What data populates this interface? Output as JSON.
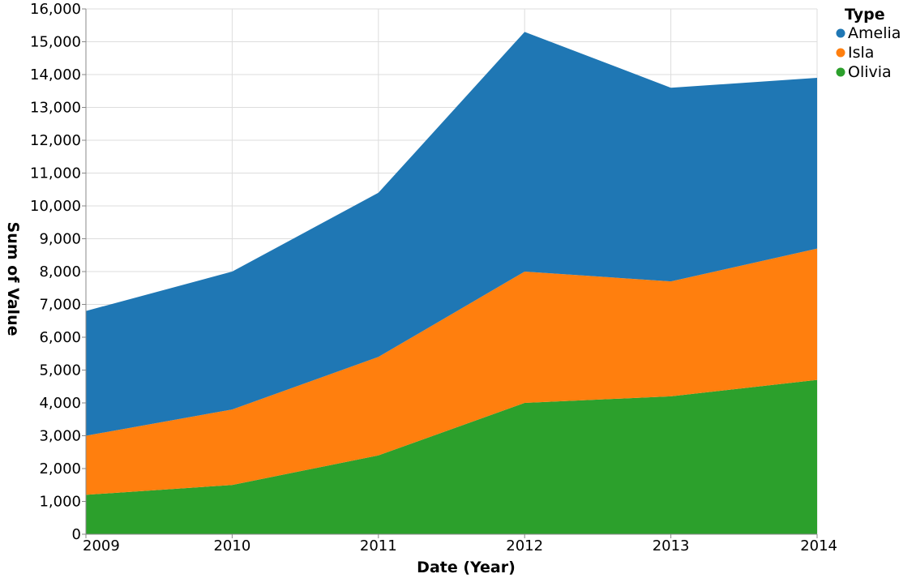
{
  "chart_data": {
    "type": "area",
    "stacked": true,
    "title": "",
    "xlabel": "Date (Year)",
    "ylabel": "Sum of Value",
    "x": [
      "2009",
      "2010",
      "2011",
      "2012",
      "2013",
      "2014"
    ],
    "ylim": [
      0,
      16000
    ],
    "yticks": [
      0,
      1000,
      2000,
      3000,
      4000,
      5000,
      6000,
      7000,
      8000,
      9000,
      10000,
      11000,
      12000,
      13000,
      14000,
      15000,
      16000
    ],
    "ytick_labels": [
      "0",
      "1,000",
      "2,000",
      "3,000",
      "4,000",
      "5,000",
      "6,000",
      "7,000",
      "8,000",
      "9,000",
      "10,000",
      "11,000",
      "12,000",
      "13,000",
      "14,000",
      "15,000",
      "16,000"
    ],
    "grid": true,
    "legend": {
      "title": "Type",
      "position": "top-right"
    },
    "series": [
      {
        "name": "Olivia",
        "color": "#2ca02c",
        "values": [
          1200,
          1500,
          2400,
          4000,
          4200,
          4700
        ]
      },
      {
        "name": "Isla",
        "color": "#ff7f0e",
        "values": [
          1800,
          2300,
          3000,
          4000,
          3500,
          4000
        ]
      },
      {
        "name": "Amelia",
        "color": "#1f77b4",
        "values": [
          3800,
          4200,
          5000,
          7300,
          5900,
          5200
        ]
      }
    ],
    "legend_order": [
      "Amelia",
      "Isla",
      "Olivia"
    ]
  }
}
